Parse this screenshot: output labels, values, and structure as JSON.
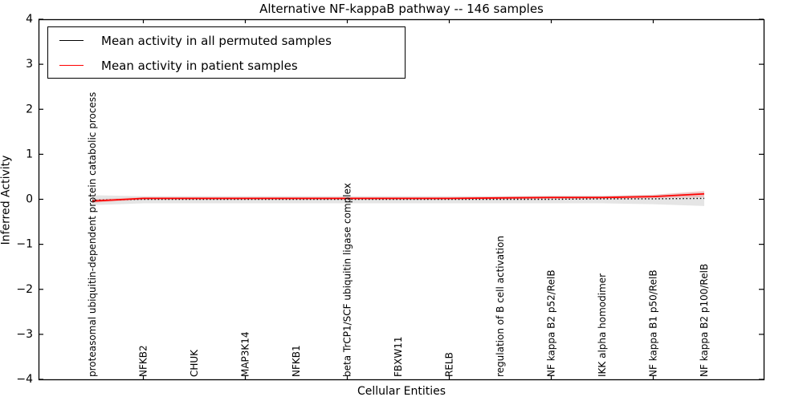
{
  "chart_data": {
    "type": "line",
    "title": "Alternative NF-kappaB pathway -- 146 samples",
    "xlabel": "Cellular Entities",
    "ylabel": "Inferred Activity",
    "ylim": [
      -4,
      4
    ],
    "yticks": [
      -4,
      -3,
      -2,
      -1,
      0,
      1,
      2,
      3,
      4
    ],
    "grid": false,
    "legend_position": "upper left",
    "axis_color": "#000000",
    "categories": [
      "proteasomal ubiquitin-dependent protein catabolic process",
      "NFKB2",
      "CHUK",
      "MAP3K14",
      "NFKB1",
      "beta TrCP1/SCF ubiquitin ligase complex",
      "FBXW11",
      "RELB",
      "regulation of B cell activation",
      "NF kappa B2 p52/RelB",
      "IKK alpha homodimer",
      "NF kappa B1 p50/RelB",
      "NF kappa B2 p100/RelB"
    ],
    "xtick_indices": [
      1,
      3,
      5,
      7,
      9,
      11
    ],
    "series": [
      {
        "name": "Mean activity in all permuted samples",
        "color": "#000000",
        "style": "dotted",
        "values": [
          -0.02,
          0.0,
          0.0,
          0.0,
          0.0,
          0.0,
          0.0,
          0.0,
          0.0,
          0.0,
          0.01,
          0.01,
          0.02
        ],
        "band_upper": [
          0.09,
          0.07,
          0.07,
          0.07,
          0.07,
          0.07,
          0.07,
          0.07,
          0.07,
          0.08,
          0.08,
          0.1,
          0.17
        ],
        "band_lower": [
          -0.13,
          -0.09,
          -0.09,
          -0.09,
          -0.09,
          -0.09,
          -0.09,
          -0.09,
          -0.09,
          -0.09,
          -0.09,
          -0.11,
          -0.15
        ],
        "band_color": "rgba(0,0,0,0.10)"
      },
      {
        "name": "Mean activity in patient samples",
        "color": "#ff0000",
        "style": "solid",
        "values": [
          -0.04,
          0.02,
          0.02,
          0.02,
          0.02,
          0.02,
          0.02,
          0.02,
          0.03,
          0.04,
          0.04,
          0.06,
          0.12
        ],
        "band_upper": [
          0.0,
          0.05,
          0.05,
          0.05,
          0.05,
          0.05,
          0.05,
          0.05,
          0.06,
          0.07,
          0.07,
          0.1,
          0.19
        ],
        "band_lower": [
          -0.08,
          -0.01,
          -0.01,
          -0.01,
          -0.01,
          -0.01,
          -0.01,
          -0.01,
          0.0,
          0.01,
          0.01,
          0.02,
          0.05
        ],
        "band_color": "rgba(255,0,0,0.14)"
      }
    ]
  }
}
